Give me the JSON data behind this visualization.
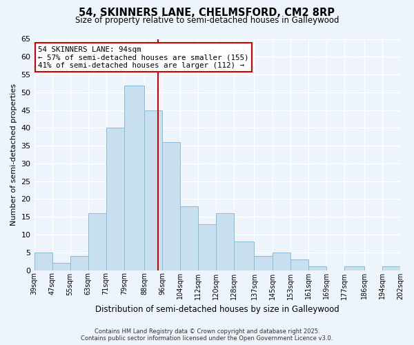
{
  "title": "54, SKINNERS LANE, CHELMSFORD, CM2 8RP",
  "subtitle": "Size of property relative to semi-detached houses in Galleywood",
  "xlabel": "Distribution of semi-detached houses by size in Galleywood",
  "ylabel": "Number of semi-detached properties",
  "bin_labels": [
    "39sqm",
    "47sqm",
    "55sqm",
    "63sqm",
    "71sqm",
    "79sqm",
    "88sqm",
    "96sqm",
    "104sqm",
    "112sqm",
    "120sqm",
    "128sqm",
    "137sqm",
    "145sqm",
    "153sqm",
    "161sqm",
    "169sqm",
    "177sqm",
    "186sqm",
    "194sqm",
    "202sqm"
  ],
  "bin_edges": [
    39,
    47,
    55,
    63,
    71,
    79,
    88,
    96,
    104,
    112,
    120,
    128,
    137,
    145,
    153,
    161,
    169,
    177,
    186,
    194,
    202
  ],
  "counts": [
    5,
    2,
    4,
    16,
    40,
    52,
    45,
    36,
    18,
    13,
    16,
    8,
    4,
    5,
    3,
    1,
    0,
    1,
    0,
    1
  ],
  "bar_color": "#c8dff0",
  "bar_edge_color": "#88bbd8",
  "vline_x": 94,
  "vline_color": "#cc0000",
  "annotation_title": "54 SKINNERS LANE: 94sqm",
  "annotation_line1": "← 57% of semi-detached houses are smaller (155)",
  "annotation_line2": "41% of semi-detached houses are larger (112) →",
  "annotation_box_color": "#ffffff",
  "annotation_box_edge": "#cc0000",
  "ylim": [
    0,
    65
  ],
  "yticks": [
    0,
    5,
    10,
    15,
    20,
    25,
    30,
    35,
    40,
    45,
    50,
    55,
    60,
    65
  ],
  "footer1": "Contains HM Land Registry data © Crown copyright and database right 2025.",
  "footer2": "Contains public sector information licensed under the Open Government Licence v3.0.",
  "bg_color": "#eef4fb",
  "grid_color": "#ffffff"
}
